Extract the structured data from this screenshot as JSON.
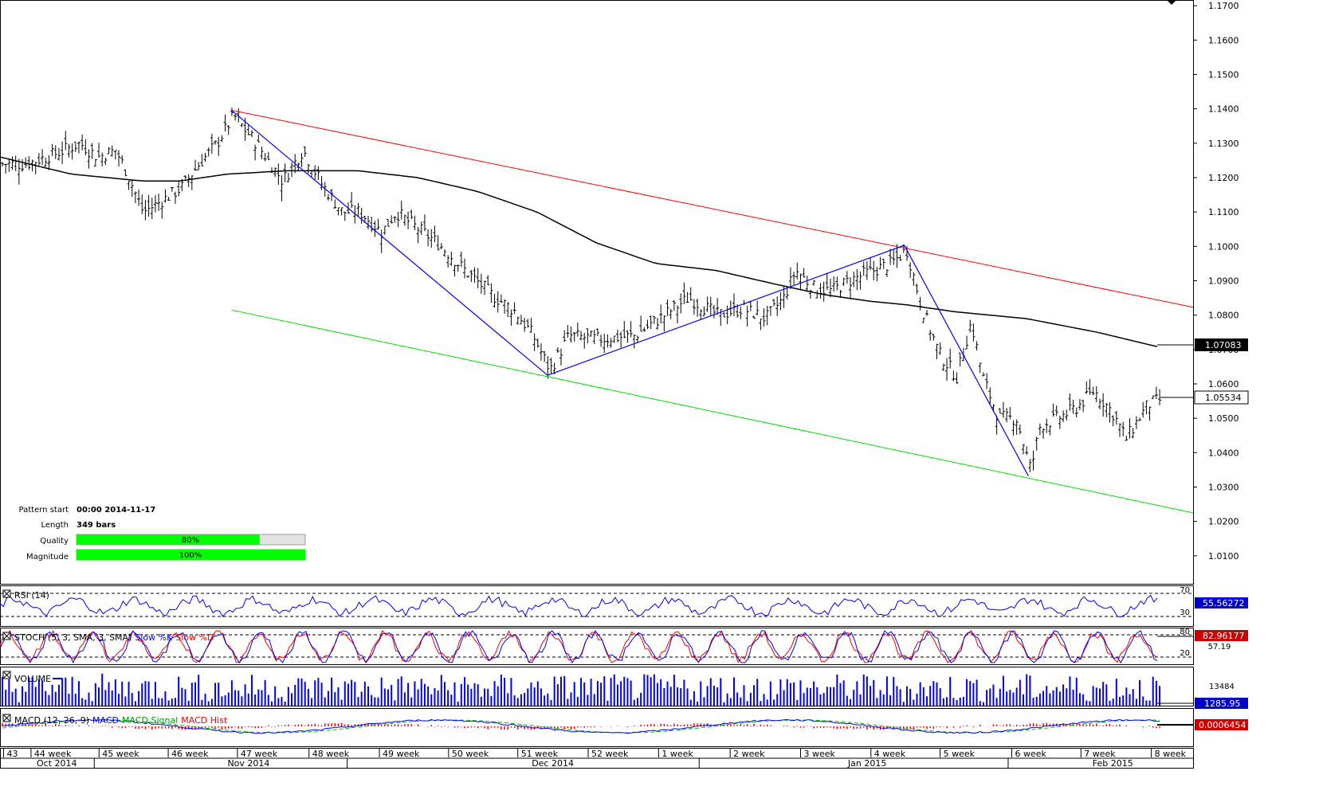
{
  "chart_data": {
    "type": "ohlc",
    "ylim": [
      1.0,
      1.1705
    ],
    "y_ticks": [
      "1.1700",
      "1.1600",
      "1.1500",
      "1.1400",
      "1.1300",
      "1.1200",
      "1.1100",
      "1.1000",
      "1.0900",
      "1.0800",
      "1.0700",
      "1.0600",
      "1.0500",
      "1.0400",
      "1.0300",
      "1.0200",
      "1.0100"
    ],
    "price_labels": {
      "moving_average": "1.07083",
      "last_price": "1.05534"
    },
    "moving_average_last": 1.07083,
    "last_price": 1.05534,
    "week_labels": [
      "43",
      "44 week",
      "45 week",
      "46 week",
      "47 week",
      "48 week",
      "49 week",
      "50 week",
      "51 week",
      "52 week",
      "1 week",
      "2 week",
      "3 week",
      "4 week",
      "5 week",
      "6 week",
      "7 week",
      "8 week"
    ],
    "month_labels": [
      "Oct 2014",
      "Nov 2014",
      "Dec 2014",
      "Jan 2015",
      "Feb 2015"
    ],
    "pattern": {
      "start_label": "Pattern start",
      "start_value": "00:00 2014-11-17",
      "length_label": "Length",
      "length_value": "349 bars",
      "quality_label": "Quality",
      "quality_value": "80%",
      "quality_fraction": 0.8,
      "magnitude_label": "Magnitude",
      "magnitude_value": "100%",
      "magnitude_fraction": 1.0,
      "resistance": [
        [
          0.194,
          1.1396
        ],
        [
          1.0,
          1.0823
        ]
      ],
      "support": [
        [
          0.194,
          1.0815
        ],
        [
          1.0,
          1.0225
        ]
      ],
      "zigzag": [
        [
          0.194,
          1.1396
        ],
        [
          0.459,
          1.0625
        ],
        [
          0.758,
          1.1003
        ],
        [
          0.862,
          1.0332
        ]
      ]
    },
    "colors": {
      "resistance": "#ff0000",
      "support": "#00e000",
      "zigzag": "#0000ff",
      "bars": "#000000",
      "moving_average": "#000000",
      "rsi": "#0000ff",
      "stoch_k": "#0000ff",
      "stoch_d": "#ff0000",
      "volume": "#0000ff",
      "macd": "#0000ff",
      "macd_signal": "#00c000",
      "macd_hist": "#ff0000",
      "quality_bar": "#00ff00"
    },
    "indicators": {
      "rsi": {
        "title": "RSI (14)",
        "levels": [
          "70",
          "30"
        ],
        "value": "55.56272"
      },
      "stoch": {
        "title": "STOCH (5, 3, SMA, 3, SMA)",
        "k_label": "Slow %K",
        "d_label": "Slow %D",
        "levels": [
          "80",
          "20"
        ],
        "value": "82.96177",
        "secondary": "57.19"
      },
      "volume": {
        "title": "VOLUME",
        "tick": "13484",
        "value": "1285.95"
      },
      "macd": {
        "title": "MACD (12, 26, 9)",
        "macd_label": "MACD",
        "signal_label": "MACD Signal",
        "hist_label": "MACD Hist",
        "value": "0.0006454"
      }
    }
  }
}
